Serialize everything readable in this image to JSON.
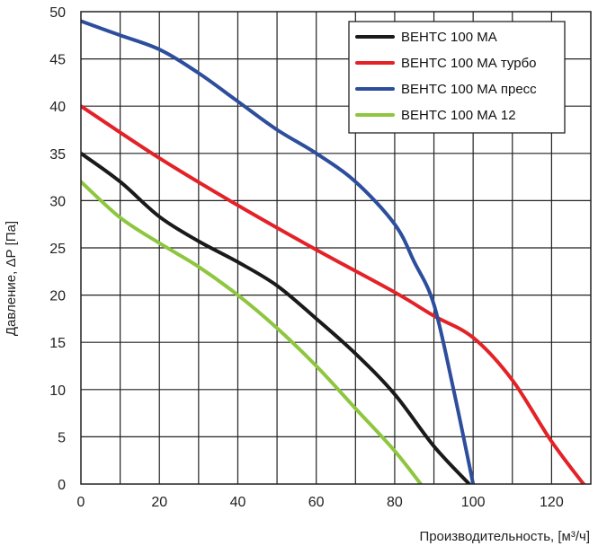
{
  "chart_data": {
    "type": "line",
    "title": "",
    "xlabel": "Производительность, [м³/ч]",
    "ylabel": "Давление, ΔР [Па]",
    "xlim": [
      0,
      130
    ],
    "ylim": [
      0,
      50
    ],
    "x_ticks": [
      0,
      20,
      40,
      60,
      80,
      100,
      120
    ],
    "y_ticks": [
      0,
      5,
      10,
      15,
      20,
      25,
      30,
      35,
      40,
      45,
      50
    ],
    "grid": true,
    "legend_position": "top-right",
    "series": [
      {
        "name": "ВЕНТС 100 МА",
        "color": "#1a1a1a",
        "x": [
          0,
          10,
          20,
          30,
          40,
          50,
          60,
          70,
          80,
          90,
          99
        ],
        "y": [
          35,
          32,
          28.3,
          25.7,
          23.5,
          21,
          17.5,
          13.8,
          9.5,
          4,
          0
        ]
      },
      {
        "name": "ВЕНТС 100 МА турбо",
        "color": "#e32228",
        "x": [
          0,
          20,
          40,
          60,
          80,
          90,
          100,
          110,
          120,
          130
        ],
        "y": [
          40,
          34.5,
          29.5,
          24.8,
          20.3,
          17.8,
          15.5,
          11,
          4.5,
          -1
        ]
      },
      {
        "name": "ВЕНТС 100 МА пресс",
        "color": "#2d4e9c",
        "x": [
          0,
          10,
          20,
          30,
          40,
          50,
          60,
          70,
          80,
          85,
          90,
          95,
          100
        ],
        "y": [
          49,
          47.5,
          46,
          43.5,
          40.5,
          37.5,
          35,
          32,
          27.5,
          23.5,
          19,
          10,
          0
        ]
      },
      {
        "name": "ВЕНТС 100 МА 12",
        "color": "#8ec63f",
        "x": [
          0,
          10,
          20,
          30,
          40,
          50,
          60,
          70,
          80,
          87
        ],
        "y": [
          32,
          28.2,
          25.5,
          23,
          20,
          16.5,
          12.5,
          8,
          3.5,
          -0.2
        ]
      }
    ]
  }
}
